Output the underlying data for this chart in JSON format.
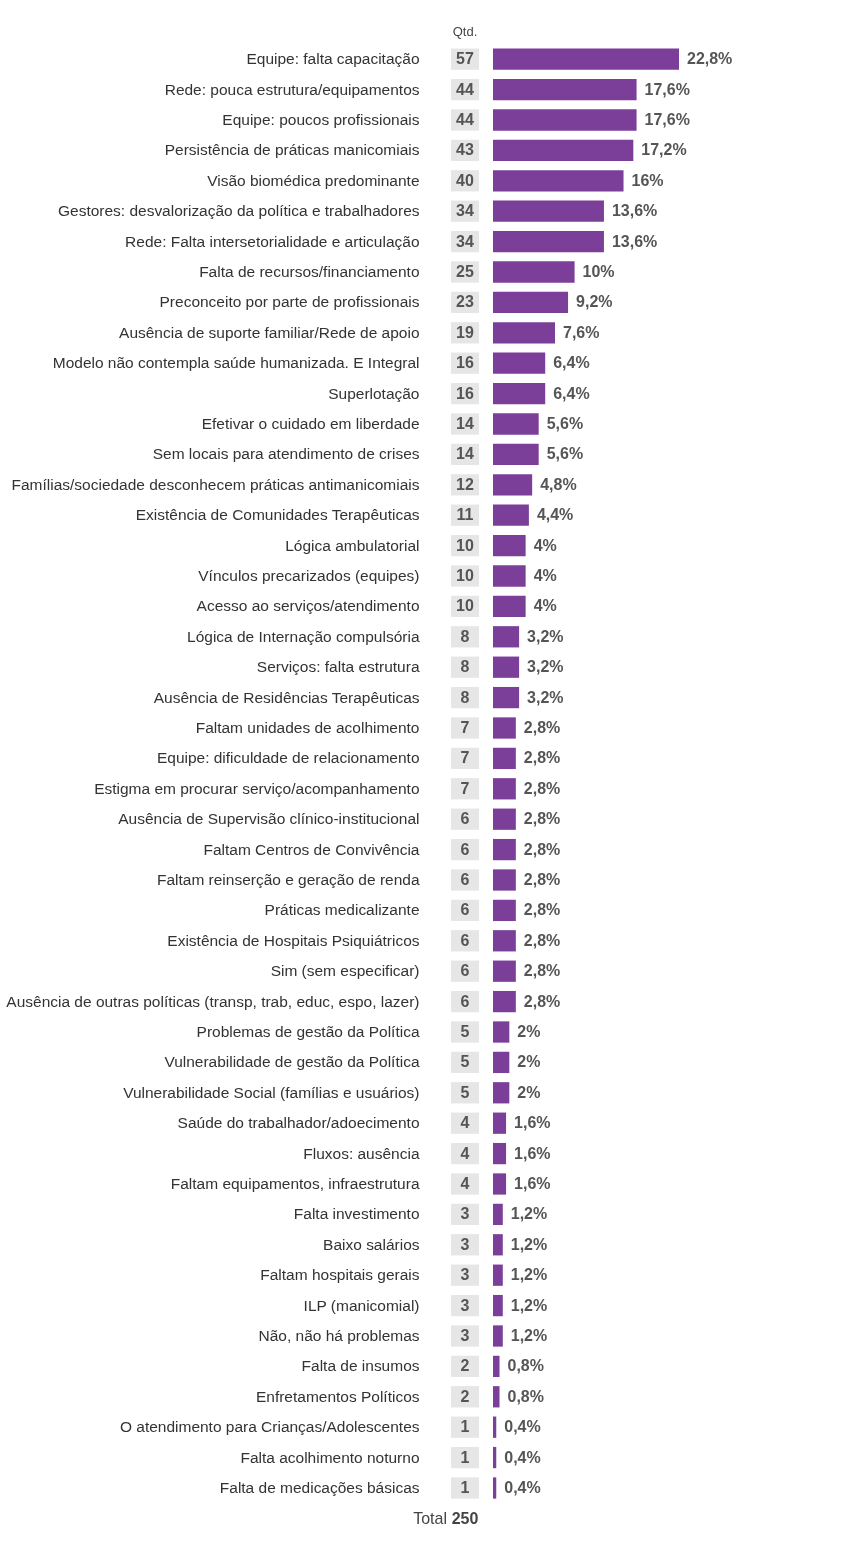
{
  "chart_data": {
    "type": "bar",
    "orientation": "horizontal",
    "color": "#7b3f99",
    "tick_labels": "y",
    "categories": [
      "Equipe: falta capacitação",
      "Rede: pouca estrutura/equipamentos",
      "Equipe: poucos profissionais",
      "Persistência de práticas manicomiais",
      "Visão biomédica predominante",
      "Gestores: desvalorização da política e trabalhadores",
      "Rede: Falta intersetorialidade e articulação",
      "Falta de recursos/financiamento",
      "Preconceito por parte de profissionais",
      "Ausência de suporte familiar/Rede de apoio",
      "Modelo não contempla saúde humanizada. E Integral",
      "Superlotação",
      "Efetivar o cuidado em liberdade",
      "Sem locais para atendimento de crises",
      "Famílias/sociedade desconhecem práticas antimanicomiais",
      "Existência de Comunidades Terapêuticas",
      "Lógica ambulatorial",
      "Vínculos precarizados (equipes)",
      "Acesso ao serviços/atendimento",
      "Lógica de Internação compulsória",
      "Serviços: falta estrutura",
      "Ausência de Residências Terapêuticas",
      "Faltam unidades de acolhimento",
      "Equipe: dificuldade de relacionamento",
      "Estigma em procurar serviço/acompanhamento",
      "Ausência de Supervisão clínico-institucional",
      "Faltam Centros de Convivência",
      "Faltam reinserção e geração de renda",
      "Práticas medicalizante",
      "Existência de Hospitais Psiquiátricos",
      "Sim (sem especificar)",
      "Ausência de outras políticas (transp, trab, educ, espo, lazer)",
      "Problemas de gestão da Política",
      "Vulnerabilidade de gestão da Política",
      "Vulnerabilidade Social (famílias e usuários)",
      "Saúde do trabalhador/adoecimento",
      "Fluxos: ausência",
      "Faltam equipamentos, infraestrutura",
      "Falta investimento",
      "Baixo salários",
      "Faltam hospitais gerais",
      "ILP (manicomial)",
      "Não, não há problemas",
      "Falta de insumos",
      "Enfretamentos Políticos",
      "O atendimento para Crianças/Adolescentes",
      "Falta acolhimento noturno",
      "Falta de medicações básicas"
    ],
    "values": [
      22.8,
      17.6,
      17.6,
      17.2,
      16,
      13.6,
      13.6,
      10,
      9.2,
      7.6,
      6.4,
      6.4,
      5.6,
      5.6,
      4.8,
      4.4,
      4,
      4,
      4,
      3.2,
      3.2,
      3.2,
      2.8,
      2.8,
      2.8,
      2.8,
      2.8,
      2.8,
      2.8,
      2.8,
      2.8,
      2.8,
      2,
      2,
      2,
      1.6,
      1.6,
      1.6,
      1.2,
      1.2,
      1.2,
      1.2,
      1.2,
      0.8,
      0.8,
      0.4,
      0.4,
      0.4
    ],
    "value_labels": [
      "22,8%",
      "17,6%",
      "17,6%",
      "17,2%",
      "16%",
      "13,6%",
      "13,6%",
      "10%",
      "9,2%",
      "7,6%",
      "6,4%",
      "6,4%",
      "5,6%",
      "5,6%",
      "4,8%",
      "4,4%",
      "4%",
      "4%",
      "4%",
      "3,2%",
      "3,2%",
      "3,2%",
      "2,8%",
      "2,8%",
      "2,8%",
      "2,8%",
      "2,8%",
      "2,8%",
      "2,8%",
      "2,8%",
      "2,8%",
      "2,8%",
      "2%",
      "2%",
      "2%",
      "1,6%",
      "1,6%",
      "1,6%",
      "1,2%",
      "1,2%",
      "1,2%",
      "1,2%",
      "1,2%",
      "0,8%",
      "0,8%",
      "0,4%",
      "0,4%",
      "0,4%"
    ],
    "annotations": [
      "Qtd.",
      "Total",
      "250",
      "57",
      "44",
      "44",
      "43",
      "40",
      "34",
      "34",
      "25",
      "23",
      "19",
      "16",
      "16",
      "14",
      "14",
      "12",
      "11",
      "10",
      "10",
      "10",
      "8",
      "8",
      "8",
      "7",
      "7",
      "7",
      "6",
      "6",
      "6",
      "6",
      "6",
      "6",
      "6",
      "5",
      "5",
      "5",
      "4",
      "4",
      "4",
      "3",
      "3",
      "3",
      "3",
      "3",
      "2",
      "2",
      "1",
      "1",
      "1"
    ]
  }
}
